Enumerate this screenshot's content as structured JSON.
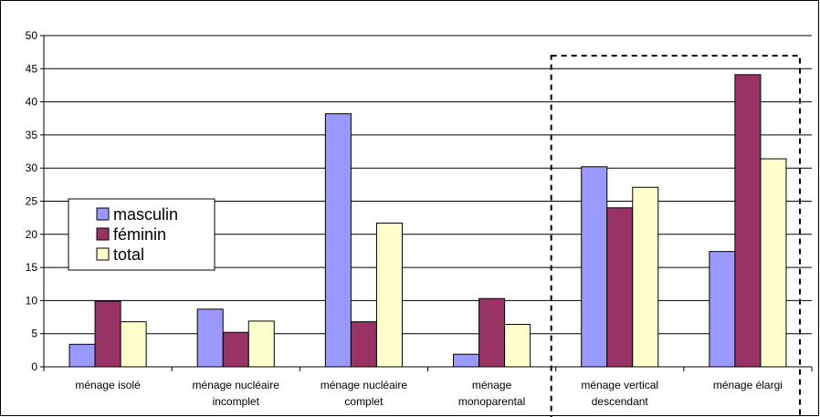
{
  "chart_data": {
    "type": "bar",
    "categories": [
      [
        "ménage isolé"
      ],
      [
        "ménage nucléaire",
        "incomplet"
      ],
      [
        "ménage nucléaire",
        "complet"
      ],
      [
        "ménage",
        "monoparental"
      ],
      [
        "ménage vertical",
        "descendant"
      ],
      [
        "ménage élargi"
      ]
    ],
    "series": [
      {
        "name": "masculin",
        "color": "#9999ff",
        "values": [
          3.4,
          8.7,
          38.2,
          1.9,
          30.2,
          17.4
        ]
      },
      {
        "name": "féminin",
        "color": "#993366",
        "values": [
          9.9,
          5.2,
          6.8,
          10.3,
          24.0,
          44.1
        ]
      },
      {
        "name": "total",
        "color": "#ffffcc",
        "values": [
          6.8,
          6.9,
          21.7,
          6.4,
          27.1,
          31.4
        ]
      }
    ],
    "ylim": [
      0,
      50
    ],
    "yticks": [
      0,
      5,
      10,
      15,
      20,
      25,
      30,
      35,
      40,
      45,
      50
    ],
    "grid": true,
    "legend_position": "left",
    "highlight": {
      "style": "dashed-box",
      "categories": [
        4,
        5
      ]
    }
  }
}
